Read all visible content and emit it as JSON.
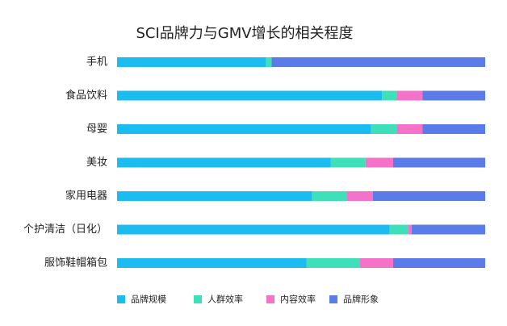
{
  "chart_data": {
    "type": "stacked_bar",
    "orientation": "horizontal",
    "title": "SCI品牌力与GMV增长的相关程度",
    "categories": [
      "手机",
      "食品饮料",
      "母婴",
      "美妆",
      "家用电器",
      "个护清洁（日化）",
      "服饰鞋帽箱包"
    ],
    "xlim": [
      0,
      100
    ],
    "series": [
      {
        "name": "品牌规模",
        "color": "#1bbcf0",
        "values": [
          40.5,
          72,
          69,
          58,
          53,
          74,
          51.5
        ]
      },
      {
        "name": "人群效率",
        "color": "#3de0b9",
        "values": [
          1.5,
          4,
          7,
          9.5,
          9.5,
          5,
          14.5
        ]
      },
      {
        "name": "内容效率",
        "color": "#f472c8",
        "values": [
          0,
          7,
          7,
          7.5,
          7,
          1,
          9
        ]
      },
      {
        "name": "品牌形象",
        "color": "#5a7be8",
        "values": [
          58,
          17,
          17,
          25,
          30.5,
          20,
          25
        ]
      }
    ]
  }
}
